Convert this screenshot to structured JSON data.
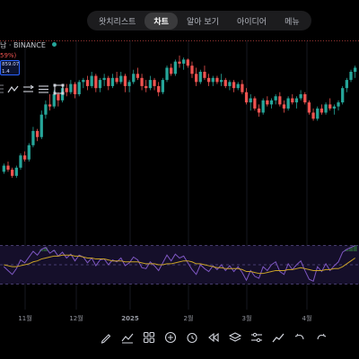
{
  "header": {
    "tabs": [
      {
        "label": "왓치리스트",
        "active": false
      },
      {
        "label": "차트",
        "active": true
      },
      {
        "label": "알아 보기",
        "active": false
      },
      {
        "label": "아이디어",
        "active": false
      },
      {
        "label": "메뉴",
        "active": false
      }
    ]
  },
  "symbol": {
    "name": "남 · BINANCE",
    "change": "59%)",
    "price_line1": "859.07",
    "price_line2": "1.4"
  },
  "colors": {
    "up": "#26a69a",
    "down": "#ef5350",
    "rsi": "#7e57c2",
    "ma": "#c9a227",
    "background": "#000000"
  },
  "chart_data": [
    {
      "type": "candlestick",
      "x_labels": [
        "11월",
        "12월",
        "2025",
        "2월",
        "3월",
        "4월"
      ],
      "candles": [
        [
          8.4,
          8.8,
          8.3,
          8.7
        ],
        [
          8.7,
          8.9,
          8.4,
          8.5
        ],
        [
          8.5,
          8.6,
          8.1,
          8.2
        ],
        [
          8.2,
          8.7,
          8.1,
          8.6
        ],
        [
          8.6,
          9.3,
          8.5,
          9.2
        ],
        [
          9.2,
          9.4,
          8.9,
          9.0
        ],
        [
          9.0,
          9.8,
          8.9,
          9.7
        ],
        [
          9.7,
          10.6,
          9.6,
          10.4
        ],
        [
          10.4,
          10.5,
          9.9,
          10.1
        ],
        [
          10.1,
          11.4,
          10.0,
          11.2
        ],
        [
          11.2,
          11.9,
          11.0,
          11.7
        ],
        [
          11.7,
          12.2,
          11.4,
          11.6
        ],
        [
          11.6,
          12.4,
          11.5,
          12.2
        ],
        [
          12.2,
          12.3,
          11.6,
          11.9
        ],
        [
          11.9,
          12.6,
          11.8,
          12.5
        ],
        [
          12.5,
          12.7,
          12.1,
          12.3
        ],
        [
          12.3,
          12.9,
          12.2,
          12.7
        ],
        [
          12.7,
          12.8,
          12.0,
          12.2
        ],
        [
          12.2,
          12.9,
          12.1,
          12.8
        ],
        [
          12.8,
          13.0,
          12.5,
          12.9
        ],
        [
          12.9,
          13.1,
          12.4,
          12.6
        ],
        [
          12.6,
          13.3,
          12.5,
          13.1
        ],
        [
          13.1,
          13.2,
          12.3,
          12.5
        ],
        [
          12.5,
          13.0,
          12.3,
          12.9
        ],
        [
          12.9,
          13.2,
          12.6,
          13.0
        ],
        [
          13.0,
          13.1,
          12.4,
          12.6
        ],
        [
          12.6,
          13.2,
          12.5,
          13.0
        ],
        [
          13.0,
          13.3,
          12.7,
          12.8
        ],
        [
          12.8,
          13.3,
          12.7,
          13.1
        ],
        [
          13.1,
          13.2,
          12.3,
          12.6
        ],
        [
          12.6,
          12.9,
          12.3,
          12.8
        ],
        [
          12.8,
          13.4,
          12.7,
          13.2
        ],
        [
          13.2,
          13.5,
          12.9,
          13.0
        ],
        [
          13.0,
          13.2,
          12.4,
          12.6
        ],
        [
          12.6,
          12.9,
          12.3,
          12.5
        ],
        [
          12.5,
          13.1,
          12.4,
          12.9
        ],
        [
          12.9,
          13.0,
          12.4,
          12.6
        ],
        [
          12.6,
          12.8,
          12.1,
          12.3
        ],
        [
          12.3,
          13.0,
          12.2,
          12.9
        ],
        [
          12.9,
          13.6,
          12.8,
          13.5
        ],
        [
          13.5,
          13.7,
          13.1,
          13.2
        ],
        [
          13.2,
          13.9,
          13.1,
          13.8
        ],
        [
          13.8,
          14.1,
          13.5,
          13.7
        ],
        [
          13.7,
          14.0,
          13.4,
          13.9
        ],
        [
          13.9,
          13.95,
          13.5,
          13.6
        ],
        [
          13.6,
          13.8,
          13.0,
          13.2
        ],
        [
          13.2,
          13.5,
          12.6,
          12.8
        ],
        [
          12.8,
          13.4,
          12.7,
          13.3
        ],
        [
          13.3,
          13.6,
          12.9,
          13.0
        ],
        [
          13.0,
          13.2,
          12.6,
          12.8
        ],
        [
          12.8,
          13.1,
          12.6,
          13.0
        ],
        [
          13.0,
          13.1,
          12.7,
          12.8
        ],
        [
          12.8,
          13.2,
          12.6,
          12.9
        ],
        [
          12.9,
          13.0,
          12.5,
          12.6
        ],
        [
          12.6,
          12.9,
          12.4,
          12.8
        ],
        [
          12.8,
          12.9,
          12.3,
          12.5
        ],
        [
          12.5,
          12.8,
          12.4,
          12.7
        ],
        [
          12.7,
          12.9,
          12.2,
          12.3
        ],
        [
          12.3,
          12.5,
          11.7,
          11.8
        ],
        [
          11.8,
          12.2,
          11.4,
          12.0
        ],
        [
          12.0,
          12.1,
          11.4,
          11.5
        ],
        [
          11.5,
          11.7,
          11.1,
          11.3
        ],
        [
          11.3,
          12.0,
          11.2,
          11.9
        ],
        [
          11.9,
          12.1,
          11.6,
          11.7
        ],
        [
          11.7,
          12.0,
          11.5,
          11.9
        ],
        [
          11.9,
          12.2,
          11.7,
          12.1
        ],
        [
          12.1,
          12.3,
          11.6,
          11.7
        ],
        [
          11.7,
          11.9,
          11.3,
          11.5
        ],
        [
          11.5,
          12.1,
          11.4,
          12.0
        ],
        [
          12.0,
          12.2,
          11.7,
          11.8
        ],
        [
          11.8,
          12.1,
          11.5,
          12.0
        ],
        [
          12.0,
          12.4,
          11.9,
          12.2
        ],
        [
          12.2,
          12.3,
          11.7,
          11.8
        ],
        [
          11.8,
          11.9,
          11.2,
          11.3
        ],
        [
          11.3,
          11.5,
          10.9,
          11.0
        ],
        [
          11.0,
          11.6,
          10.9,
          11.5
        ],
        [
          11.5,
          11.7,
          11.2,
          11.3
        ],
        [
          11.3,
          11.8,
          11.2,
          11.7
        ],
        [
          11.7,
          12.0,
          11.4,
          11.5
        ],
        [
          11.5,
          11.7,
          11.2,
          11.6
        ],
        [
          11.6,
          11.9,
          11.4,
          11.8
        ],
        [
          11.8,
          12.6,
          11.7,
          12.5
        ],
        [
          12.5,
          13.0,
          12.3,
          12.9
        ],
        [
          12.9,
          13.4,
          12.8,
          13.3
        ],
        [
          13.3,
          13.6,
          13.0,
          13.5
        ]
      ],
      "rsi": [
        48,
        44,
        40,
        46,
        55,
        52,
        58,
        64,
        60,
        66,
        68,
        62,
        65,
        59,
        63,
        57,
        61,
        54,
        60,
        58,
        52,
        57,
        49,
        55,
        56,
        50,
        55,
        53,
        57,
        49,
        52,
        58,
        55,
        47,
        46,
        53,
        49,
        44,
        52,
        60,
        54,
        61,
        57,
        59,
        52,
        45,
        40,
        50,
        46,
        43,
        49,
        45,
        50,
        44,
        49,
        43,
        48,
        42,
        34,
        44,
        38,
        36,
        48,
        44,
        50,
        53,
        43,
        40,
        51,
        45,
        50,
        54,
        44,
        35,
        33,
        48,
        43,
        51,
        44,
        49,
        53,
        63,
        66,
        68,
        70
      ],
      "rsi_ma": [
        50,
        49,
        48,
        48,
        49,
        50,
        51,
        53,
        54,
        56,
        57,
        58,
        59,
        59,
        60,
        60,
        60,
        59,
        59,
        58,
        57,
        57,
        56,
        56,
        56,
        55,
        54,
        54,
        54,
        53,
        53,
        53,
        53,
        52,
        51,
        51,
        51,
        50,
        50,
        51,
        51,
        52,
        53,
        54,
        54,
        53,
        51,
        51,
        50,
        49,
        48,
        47,
        47,
        46,
        46,
        46,
        46,
        45,
        43,
        43,
        42,
        41,
        41,
        42,
        43,
        44,
        44,
        44,
        45,
        45,
        46,
        47,
        46,
        45,
        44,
        44,
        44,
        45,
        45,
        46,
        46,
        48,
        51,
        54,
        57
      ],
      "rsi_levels": [
        70,
        50,
        30
      ]
    }
  ],
  "bottom_toolbar": [
    {
      "icon": "pencil-icon"
    },
    {
      "icon": "indicators-icon"
    },
    {
      "icon": "grid-icon"
    },
    {
      "icon": "plus-circle-icon"
    },
    {
      "icon": "alarm-clock-icon"
    },
    {
      "icon": "rewind-icon"
    },
    {
      "icon": "layers-icon"
    },
    {
      "icon": "sliders-icon"
    },
    {
      "icon": "trend-line-icon"
    },
    {
      "icon": "undo-icon"
    },
    {
      "icon": "redo-icon"
    }
  ]
}
